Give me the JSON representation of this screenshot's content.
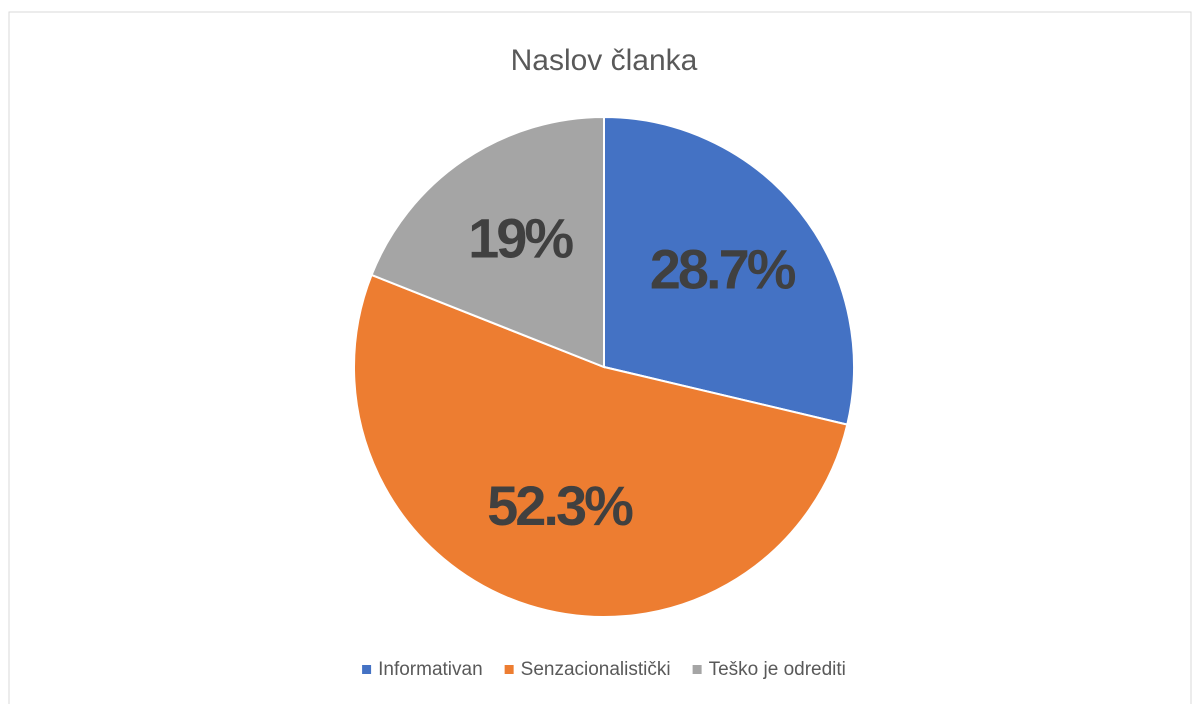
{
  "chart_data": {
    "type": "pie",
    "title": "Naslov članka",
    "categories": [
      "Informativan",
      "Senzacionalistički",
      "Teško je odrediti"
    ],
    "values": [
      28.7,
      52.3,
      19
    ],
    "value_labels": [
      "28.7%",
      "52.3%",
      "19%"
    ],
    "colors": [
      "#4472c4",
      "#ed7d31",
      "#a5a5a5"
    ],
    "legend": "bottom"
  }
}
